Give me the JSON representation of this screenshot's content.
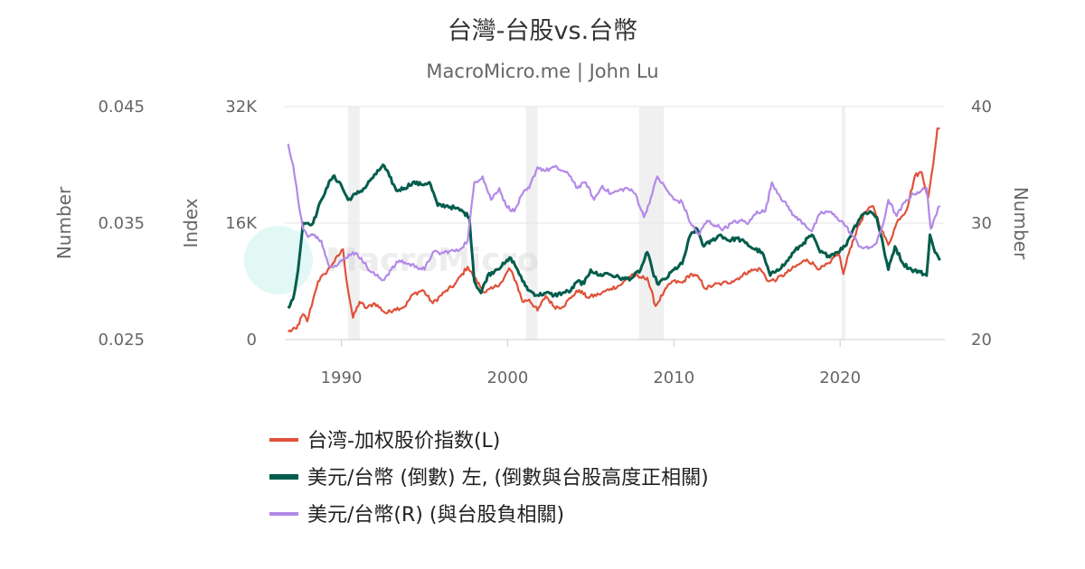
{
  "chart_data": {
    "type": "line",
    "title": "台灣-台股vs.台幣",
    "subtitle": "MacroMicro.me | John Lu",
    "watermark": "MacroMicro",
    "x_axis": {
      "range": [
        1986.6,
        2026.3
      ],
      "ticks": [
        {
          "value": 1990,
          "label": "1990"
        },
        {
          "value": 2000,
          "label": "2000"
        },
        {
          "value": 2010,
          "label": "2010"
        },
        {
          "value": 2020,
          "label": "2020"
        }
      ]
    },
    "y_axes": {
      "outer_left": {
        "title": "Number",
        "range": [
          0.025,
          0.045
        ],
        "ticks": [
          {
            "value": 0.025,
            "label": "0.025"
          },
          {
            "value": 0.035,
            "label": "0.035"
          },
          {
            "value": 0.045,
            "label": "0.045"
          }
        ]
      },
      "left": {
        "title": "Index",
        "range": [
          0,
          32000
        ],
        "ticks": [
          {
            "value": 0,
            "label": "0"
          },
          {
            "value": 16000,
            "label": "16K"
          },
          {
            "value": 32000,
            "label": "32K"
          }
        ]
      },
      "right": {
        "title": "Number",
        "range": [
          20,
          40
        ],
        "ticks": [
          {
            "value": 20,
            "label": "20"
          },
          {
            "value": 30,
            "label": "30"
          },
          {
            "value": 40,
            "label": "40"
          }
        ]
      }
    },
    "grid": "horizontal",
    "legend_position": "bottom",
    "shaded_periods": [
      [
        1990.4,
        1991.1
      ],
      [
        2001.1,
        2001.8
      ],
      [
        2007.9,
        2009.4
      ],
      [
        2020.1,
        2020.3
      ]
    ],
    "series": [
      {
        "name": "台湾-加权股价指数(L)",
        "color": "#e0513a",
        "axis": "left",
        "points": [
          [
            1986.8,
            1100
          ],
          [
            1987.3,
            1500
          ],
          [
            1987.7,
            3500
          ],
          [
            1987.95,
            2500
          ],
          [
            1988.3,
            5500
          ],
          [
            1988.6,
            8000
          ],
          [
            1989.0,
            9000
          ],
          [
            1989.5,
            10500
          ],
          [
            1990.1,
            12400
          ],
          [
            1990.35,
            7500
          ],
          [
            1990.7,
            3000
          ],
          [
            1991.1,
            5200
          ],
          [
            1991.5,
            4300
          ],
          [
            1992.0,
            5000
          ],
          [
            1992.7,
            3600
          ],
          [
            1993.2,
            4200
          ],
          [
            1993.8,
            4500
          ],
          [
            1994.3,
            6200
          ],
          [
            1994.9,
            6800
          ],
          [
            1995.5,
            5000
          ],
          [
            1996.2,
            6500
          ],
          [
            1996.8,
            7500
          ],
          [
            1997.6,
            10000
          ],
          [
            1998.0,
            8500
          ],
          [
            1998.6,
            6500
          ],
          [
            1999.1,
            7000
          ],
          [
            1999.7,
            8000
          ],
          [
            2000.1,
            9800
          ],
          [
            2000.5,
            8000
          ],
          [
            2000.9,
            5200
          ],
          [
            2001.3,
            5500
          ],
          [
            2001.8,
            4000
          ],
          [
            2002.3,
            6000
          ],
          [
            2002.8,
            4500
          ],
          [
            2003.3,
            4500
          ],
          [
            2003.9,
            6000
          ],
          [
            2004.3,
            6800
          ],
          [
            2004.8,
            5800
          ],
          [
            2005.5,
            6200
          ],
          [
            2006.2,
            7000
          ],
          [
            2006.8,
            7500
          ],
          [
            2007.5,
            9000
          ],
          [
            2007.9,
            8500
          ],
          [
            2008.4,
            8500
          ],
          [
            2008.9,
            4600
          ],
          [
            2009.4,
            6500
          ],
          [
            2009.9,
            8000
          ],
          [
            2010.5,
            7800
          ],
          [
            2011.0,
            9000
          ],
          [
            2011.5,
            8500
          ],
          [
            2011.9,
            7000
          ],
          [
            2012.4,
            7500
          ],
          [
            2012.9,
            7700
          ],
          [
            2013.5,
            8000
          ],
          [
            2014.0,
            8600
          ],
          [
            2014.5,
            9400
          ],
          [
            2015.2,
            9700
          ],
          [
            2015.7,
            8000
          ],
          [
            2016.2,
            8300
          ],
          [
            2016.8,
            9200
          ],
          [
            2017.5,
            10300
          ],
          [
            2018.0,
            11000
          ],
          [
            2018.8,
            9700
          ],
          [
            2019.4,
            10500
          ],
          [
            2019.9,
            12000
          ],
          [
            2020.2,
            9000
          ],
          [
            2020.6,
            12500
          ],
          [
            2021.0,
            15000
          ],
          [
            2021.5,
            17500
          ],
          [
            2022.0,
            18300
          ],
          [
            2022.5,
            15000
          ],
          [
            2022.9,
            13000
          ],
          [
            2023.5,
            16500
          ],
          [
            2024.0,
            17800
          ],
          [
            2024.5,
            22500
          ],
          [
            2024.9,
            23000
          ],
          [
            2025.3,
            19500
          ],
          [
            2025.6,
            24000
          ],
          [
            2025.85,
            29000
          ],
          [
            2026.0,
            29000
          ]
        ]
      },
      {
        "name": "美元/台幣 (倒數) 左, (倒數與台股高度正相關)",
        "color": "#035d4c",
        "axis": "outer_left",
        "points": [
          [
            1986.8,
            0.0277
          ],
          [
            1987.1,
            0.0285
          ],
          [
            1987.4,
            0.031
          ],
          [
            1987.7,
            0.035
          ],
          [
            1988.0,
            0.035
          ],
          [
            1988.3,
            0.035
          ],
          [
            1988.8,
            0.037
          ],
          [
            1989.1,
            0.038
          ],
          [
            1989.5,
            0.039
          ],
          [
            1989.9,
            0.0385
          ],
          [
            1990.4,
            0.037
          ],
          [
            1990.9,
            0.0375
          ],
          [
            1991.4,
            0.038
          ],
          [
            1991.8,
            0.0388
          ],
          [
            1992.1,
            0.0392
          ],
          [
            1992.5,
            0.04
          ],
          [
            1992.9,
            0.039
          ],
          [
            1993.3,
            0.0378
          ],
          [
            1993.8,
            0.038
          ],
          [
            1994.3,
            0.0385
          ],
          [
            1994.8,
            0.0383
          ],
          [
            1995.3,
            0.0385
          ],
          [
            1995.8,
            0.0365
          ],
          [
            1996.3,
            0.0365
          ],
          [
            1996.8,
            0.0363
          ],
          [
            1997.3,
            0.036
          ],
          [
            1997.7,
            0.0355
          ],
          [
            1998.0,
            0.03
          ],
          [
            1998.4,
            0.029
          ],
          [
            1998.8,
            0.0305
          ],
          [
            1999.3,
            0.031
          ],
          [
            1999.8,
            0.0315
          ],
          [
            2000.2,
            0.032
          ],
          [
            2000.6,
            0.031
          ],
          [
            2000.9,
            0.03
          ],
          [
            2001.3,
            0.0292
          ],
          [
            2001.8,
            0.0288
          ],
          [
            2002.3,
            0.029
          ],
          [
            2002.8,
            0.0288
          ],
          [
            2003.3,
            0.029
          ],
          [
            2003.8,
            0.0292
          ],
          [
            2004.2,
            0.03
          ],
          [
            2004.6,
            0.0298
          ],
          [
            2005.0,
            0.031
          ],
          [
            2005.5,
            0.0305
          ],
          [
            2006.0,
            0.0307
          ],
          [
            2006.5,
            0.0304
          ],
          [
            2007.0,
            0.0302
          ],
          [
            2007.5,
            0.0303
          ],
          [
            2008.0,
            0.031
          ],
          [
            2008.4,
            0.0325
          ],
          [
            2008.7,
            0.031
          ],
          [
            2009.0,
            0.0298
          ],
          [
            2009.5,
            0.0302
          ],
          [
            2010.0,
            0.031
          ],
          [
            2010.5,
            0.0315
          ],
          [
            2011.0,
            0.034
          ],
          [
            2011.4,
            0.0345
          ],
          [
            2011.8,
            0.033
          ],
          [
            2012.3,
            0.0335
          ],
          [
            2012.8,
            0.034
          ],
          [
            2013.3,
            0.0335
          ],
          [
            2013.8,
            0.0337
          ],
          [
            2014.3,
            0.0333
          ],
          [
            2014.8,
            0.0328
          ],
          [
            2015.3,
            0.0325
          ],
          [
            2015.8,
            0.0305
          ],
          [
            2016.2,
            0.031
          ],
          [
            2016.7,
            0.0315
          ],
          [
            2017.2,
            0.0325
          ],
          [
            2017.8,
            0.0333
          ],
          [
            2018.3,
            0.034
          ],
          [
            2018.8,
            0.0325
          ],
          [
            2019.3,
            0.0322
          ],
          [
            2019.8,
            0.0325
          ],
          [
            2020.3,
            0.033
          ],
          [
            2020.8,
            0.0345
          ],
          [
            2021.3,
            0.0357
          ],
          [
            2021.8,
            0.036
          ],
          [
            2022.2,
            0.0355
          ],
          [
            2022.6,
            0.033
          ],
          [
            2022.9,
            0.031
          ],
          [
            2023.3,
            0.033
          ],
          [
            2023.8,
            0.0315
          ],
          [
            2024.3,
            0.031
          ],
          [
            2024.8,
            0.0308
          ],
          [
            2025.2,
            0.0305
          ],
          [
            2025.4,
            0.034
          ],
          [
            2025.7,
            0.0325
          ],
          [
            2026.0,
            0.0318
          ]
        ]
      },
      {
        "name": "美元/台幣(R) (與台股負相關)",
        "color": "#b389e8",
        "axis": "right",
        "points": [
          [
            1986.8,
            36.8
          ],
          [
            1987.1,
            35.0
          ],
          [
            1987.4,
            32.0
          ],
          [
            1987.7,
            29.5
          ],
          [
            1988.0,
            28.8
          ],
          [
            1988.4,
            29.0
          ],
          [
            1988.8,
            28.5
          ],
          [
            1989.2,
            26.5
          ],
          [
            1989.7,
            26.3
          ],
          [
            1990.2,
            27.0
          ],
          [
            1990.7,
            27.5
          ],
          [
            1991.2,
            27.0
          ],
          [
            1991.7,
            25.9
          ],
          [
            1992.1,
            25.5
          ],
          [
            1992.5,
            25.1
          ],
          [
            1993.0,
            26.0
          ],
          [
            1993.5,
            26.8
          ],
          [
            1994.0,
            26.5
          ],
          [
            1994.5,
            26.3
          ],
          [
            1995.0,
            26.0
          ],
          [
            1995.5,
            27.5
          ],
          [
            1996.0,
            27.4
          ],
          [
            1996.5,
            27.6
          ],
          [
            1997.0,
            27.6
          ],
          [
            1997.6,
            28.5
          ],
          [
            1998.0,
            33.5
          ],
          [
            1998.5,
            34.0
          ],
          [
            1999.0,
            32.0
          ],
          [
            1999.5,
            33.0
          ],
          [
            1999.9,
            31.5
          ],
          [
            2000.4,
            31.0
          ],
          [
            2000.9,
            32.5
          ],
          [
            2001.3,
            33.0
          ],
          [
            2001.8,
            34.8
          ],
          [
            2002.3,
            34.5
          ],
          [
            2002.8,
            34.8
          ],
          [
            2003.3,
            34.5
          ],
          [
            2003.8,
            34.0
          ],
          [
            2004.2,
            33.0
          ],
          [
            2004.7,
            33.5
          ],
          [
            2005.2,
            32.0
          ],
          [
            2005.7,
            33.2
          ],
          [
            2006.2,
            32.5
          ],
          [
            2006.7,
            32.8
          ],
          [
            2007.2,
            33.0
          ],
          [
            2007.7,
            32.5
          ],
          [
            2008.2,
            30.5
          ],
          [
            2008.7,
            32.5
          ],
          [
            2009.0,
            34.0
          ],
          [
            2009.5,
            33.0
          ],
          [
            2010.0,
            32.0
          ],
          [
            2010.5,
            31.8
          ],
          [
            2011.0,
            30.0
          ],
          [
            2011.5,
            29.0
          ],
          [
            2012.0,
            30.2
          ],
          [
            2012.5,
            29.8
          ],
          [
            2013.0,
            29.5
          ],
          [
            2013.5,
            30.0
          ],
          [
            2014.0,
            30.2
          ],
          [
            2014.5,
            30.0
          ],
          [
            2015.0,
            31.0
          ],
          [
            2015.5,
            31.0
          ],
          [
            2015.9,
            33.5
          ],
          [
            2016.3,
            32.5
          ],
          [
            2016.8,
            31.5
          ],
          [
            2017.3,
            30.5
          ],
          [
            2017.8,
            30.0
          ],
          [
            2018.3,
            29.3
          ],
          [
            2018.8,
            30.8
          ],
          [
            2019.3,
            31.0
          ],
          [
            2019.8,
            30.5
          ],
          [
            2020.2,
            30.0
          ],
          [
            2020.7,
            29.0
          ],
          [
            2021.2,
            28.0
          ],
          [
            2021.7,
            27.8
          ],
          [
            2022.2,
            28.3
          ],
          [
            2022.6,
            30.0
          ],
          [
            2022.9,
            32.0
          ],
          [
            2023.4,
            30.6
          ],
          [
            2023.9,
            31.8
          ],
          [
            2024.4,
            32.5
          ],
          [
            2024.9,
            32.8
          ],
          [
            2025.2,
            33.0
          ],
          [
            2025.45,
            29.5
          ],
          [
            2025.7,
            30.5
          ],
          [
            2026.0,
            31.5
          ]
        ]
      }
    ]
  }
}
